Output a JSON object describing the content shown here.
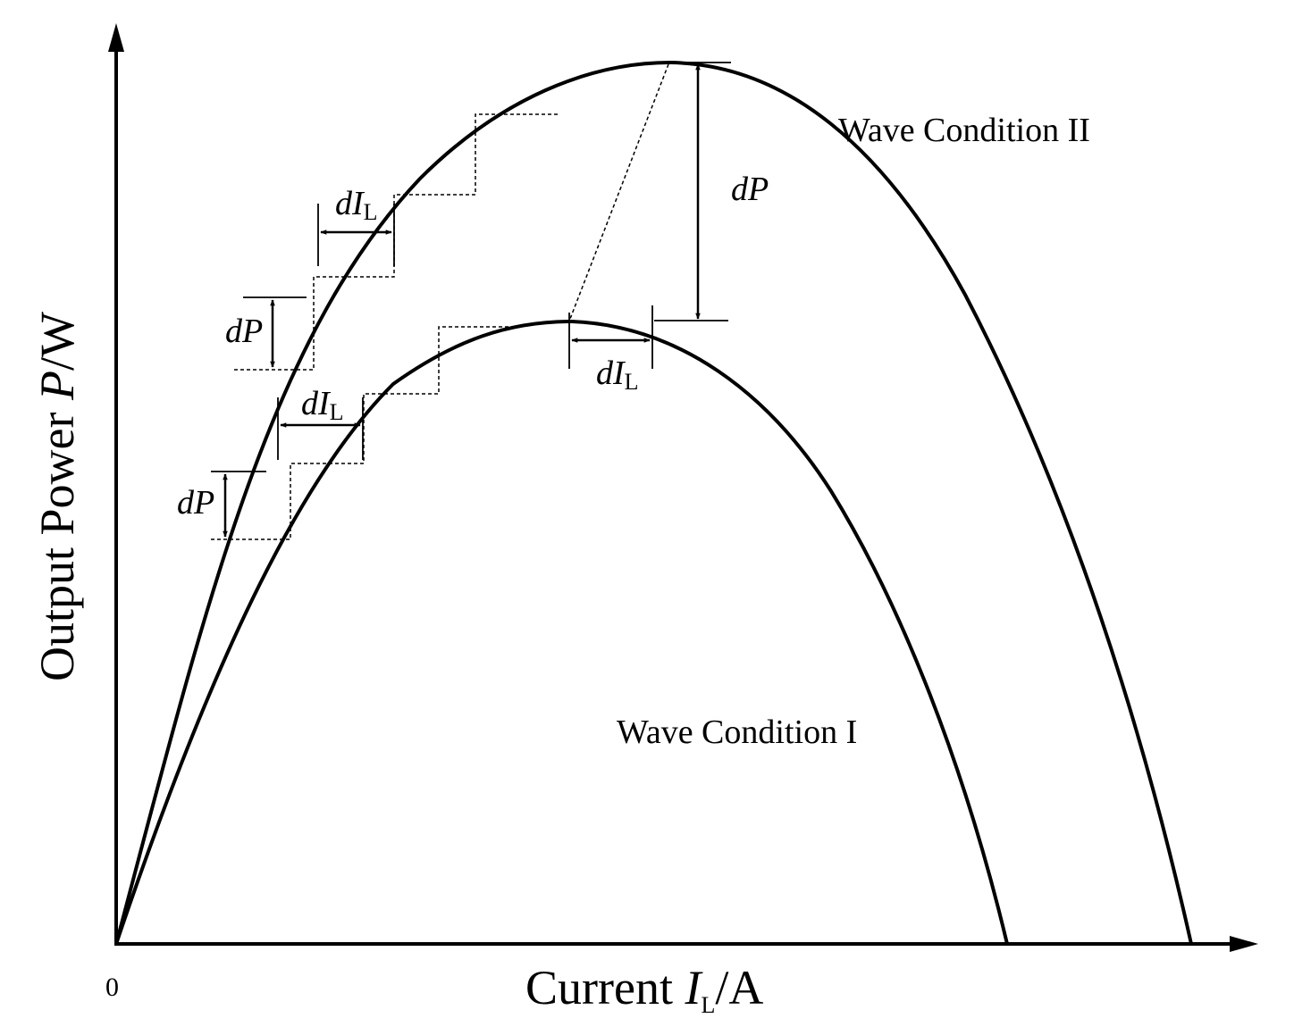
{
  "axes": {
    "origin_label": "0",
    "x_title": {
      "prefix": "Current ",
      "var": "I",
      "sub": "L",
      "suffix": "/A"
    },
    "y_title": {
      "prefix": "Output Power ",
      "var": "P",
      "suffix": "/W"
    }
  },
  "curves": [
    {
      "label": "Wave Condition I"
    },
    {
      "label": "Wave Condition II"
    }
  ],
  "annotations": {
    "dP": {
      "d": "d",
      "var": "P"
    },
    "dIL": {
      "d": "d",
      "var": "I",
      "sub": "L"
    }
  },
  "colors": {
    "line": "#000000",
    "background": "#ffffff"
  }
}
